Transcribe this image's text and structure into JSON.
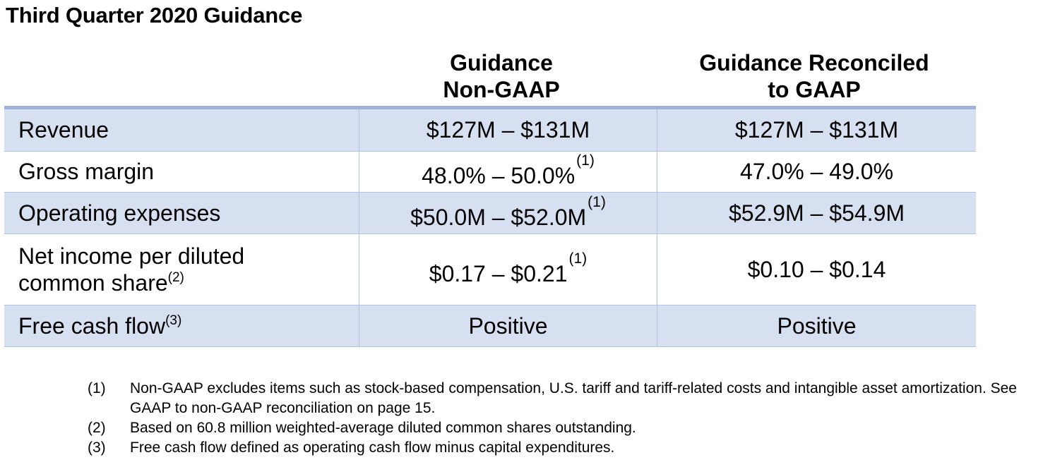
{
  "title": "Third Quarter 2020 Guidance",
  "columns": {
    "nongaap": [
      "Guidance",
      "Non-GAAP"
    ],
    "gaap": [
      "Guidance Reconciled",
      "to GAAP"
    ]
  },
  "rows": [
    {
      "metric": "Revenue",
      "nongaap": "$127M – $131M",
      "gaap": "$127M – $131M"
    },
    {
      "metric": "Gross margin",
      "nongaap": "48.0% – 50.0%",
      "nongaap_ref": "(1)",
      "gaap": "47.0% – 49.0%"
    },
    {
      "metric": "Operating expenses",
      "nongaap": "$50.0M – $52.0M",
      "nongaap_ref": "(1)",
      "gaap": "$52.9M – $54.9M"
    },
    {
      "metric_lines": [
        "Net income per diluted",
        "common share"
      ],
      "metric_ref": "(2)",
      "nongaap": "$0.17 – $0.21",
      "nongaap_ref": "(1)",
      "gaap": "$0.10 – $0.14"
    },
    {
      "metric": "Free cash flow",
      "metric_ref": "(3)",
      "nongaap": "Positive",
      "gaap": "Positive"
    }
  ],
  "footnotes": [
    {
      "num": "(1)",
      "text": "Non-GAAP excludes items such as stock-based compensation, U.S. tariff and tariff-related costs and intangible asset amortization. See GAAP to non-GAAP reconciliation on page 15."
    },
    {
      "num": "(2)",
      "text": "Based on 60.8 million weighted-average diluted common shares outstanding."
    },
    {
      "num": "(3)",
      "text": "Free cash flow defined as operating cash flow minus capital expenditures."
    }
  ]
}
